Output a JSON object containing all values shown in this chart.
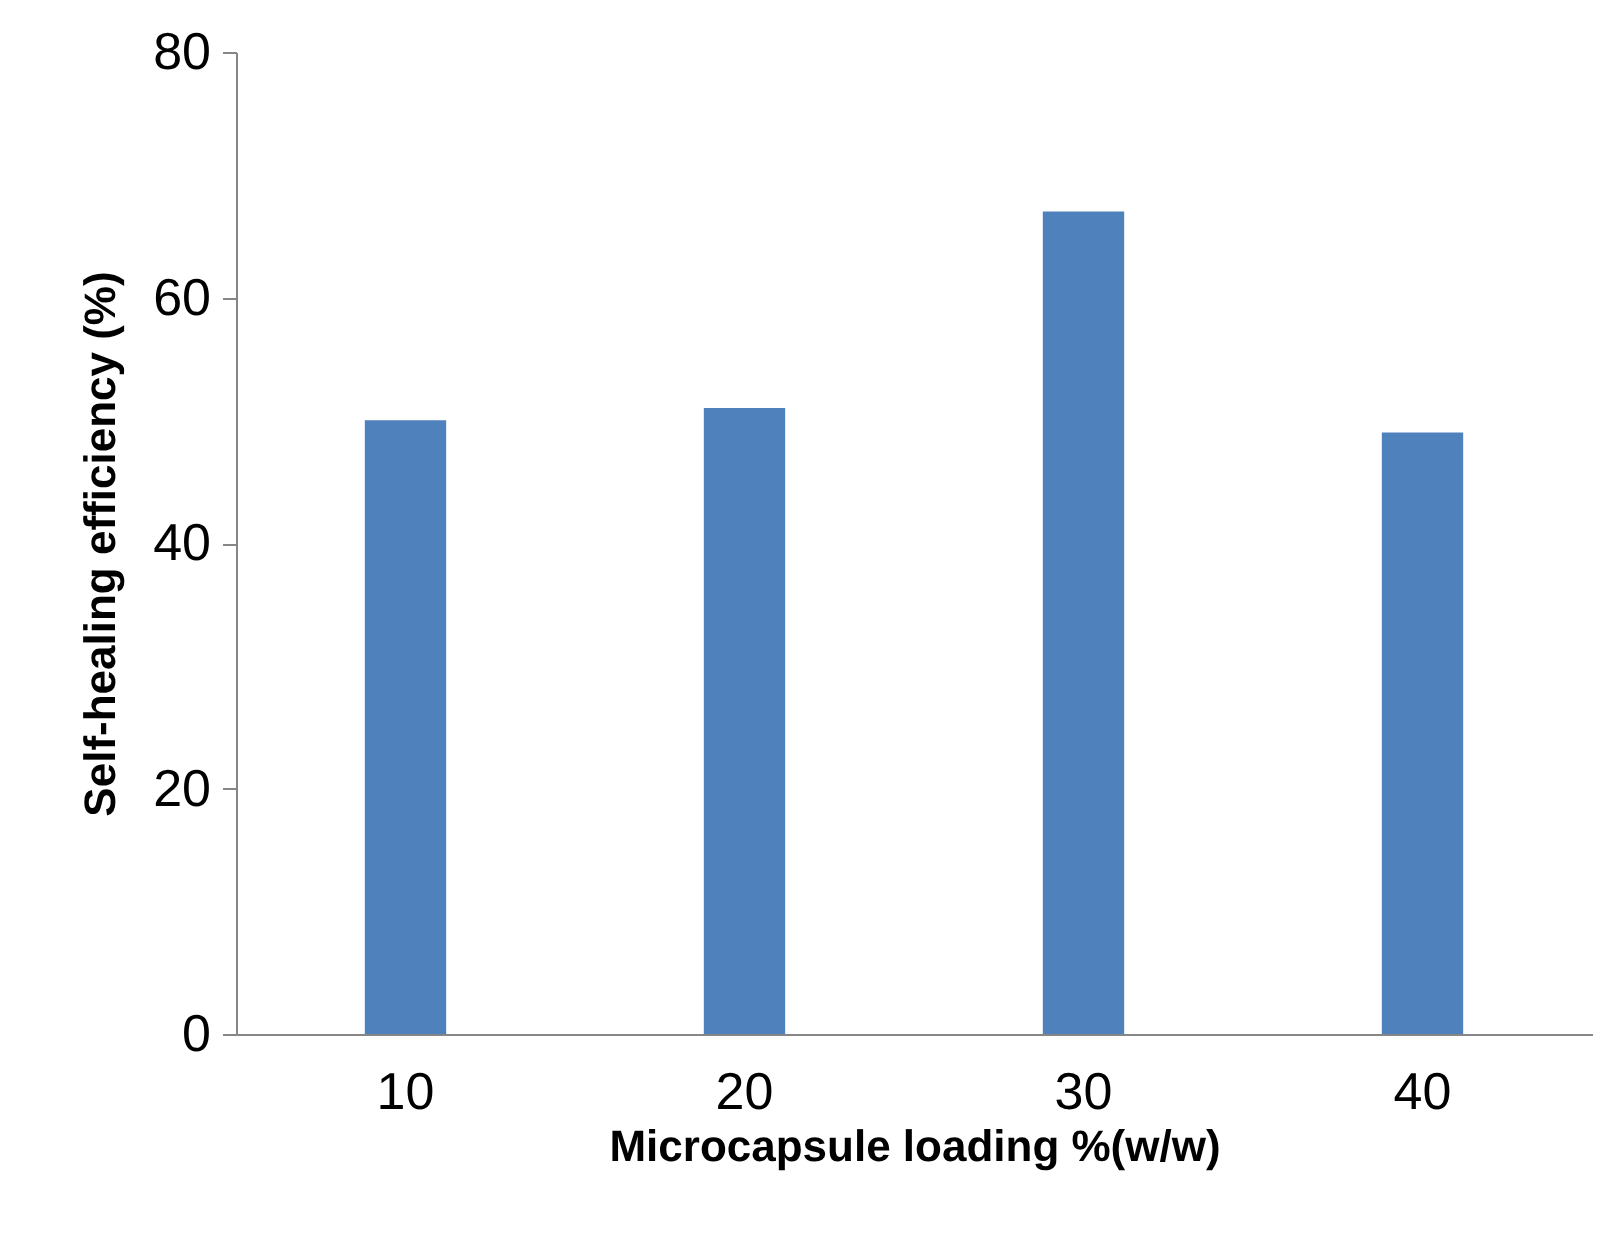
{
  "chart_data": {
    "type": "bar",
    "xlabel": "Microcapsule loading %(w/w)",
    "ylabel": "Self-healing efficiency (%)",
    "categories": [
      "10",
      "20",
      "30",
      "40"
    ],
    "values": [
      50,
      51,
      67,
      49
    ],
    "color": "#4f81bd",
    "ylim": [
      0,
      80
    ],
    "yticks": [
      0,
      20,
      40,
      60,
      80
    ],
    "grid": false
  }
}
